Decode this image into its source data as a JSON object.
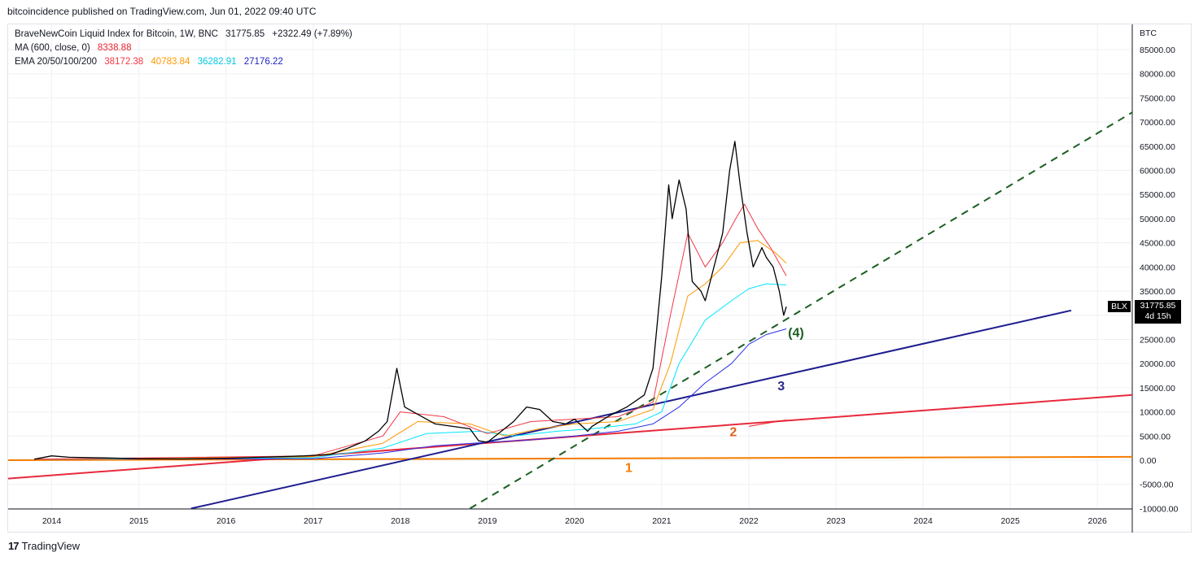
{
  "header": {
    "published": "bitcoincidence published on TradingView.com, Jun 01, 2022 09:40 UTC"
  },
  "legend": {
    "line1": {
      "label": "BraveNewCoin Liquid Index for Bitcoin, 1W, BNC",
      "close": "31775.85",
      "change": "+2322.49 (+7.89%)"
    },
    "line2": {
      "label": "MA (600, close, 0)",
      "value": "8338.88"
    },
    "line3": {
      "label": "EMA 20/50/100/200",
      "v20": "38172.38",
      "v50": "40783.84",
      "v100": "36282.91",
      "v200": "27176.22"
    }
  },
  "price_tag": {
    "symbol": "BLX",
    "price": "31775.85",
    "countdown": "4d 15h"
  },
  "footer": {
    "brand": "TradingView",
    "logo": "17"
  },
  "colors": {
    "price": "#000000",
    "ema20": "#f23645",
    "ema50": "#ff9800",
    "ema100": "#00e5ff",
    "ema200": "#2a2ee8",
    "ma600": "#e8232d",
    "line1": "#f57c00",
    "line2": "#e8293d",
    "line3": "#1f1d8e",
    "line4": "#1b5e20",
    "label1": "#f57c00",
    "label2": "#e0621c",
    "label3": "#2b2a8a",
    "label4": "#1b5e20",
    "grid": "#eef0f3"
  },
  "chart_data": {
    "type": "line",
    "title": "BraveNewCoin Liquid Index for Bitcoin, 1W, BNC",
    "y_unit": "BTC",
    "ylim": [
      -10000,
      90000
    ],
    "xlim": [
      2013.5,
      2026.4
    ],
    "x_ticks": [
      "2014",
      "2015",
      "2016",
      "2017",
      "2018",
      "2019",
      "2020",
      "2021",
      "2022",
      "2023",
      "2024",
      "2025",
      "2026"
    ],
    "y_ticks": [
      "-10000.00",
      "-5000.00",
      "0.00",
      "5000.00",
      "10000.00",
      "15000.00",
      "20000.00",
      "25000.00",
      "30000.00",
      "35000.00",
      "40000.00",
      "45000.00",
      "50000.00",
      "55000.00",
      "60000.00",
      "65000.00",
      "70000.00",
      "75000.00",
      "80000.00",
      "85000.00"
    ],
    "grid": true,
    "series": [
      {
        "name": "BraveNewCoin Liquid Index for Bitcoin",
        "x": [
          2013.8,
          2014.0,
          2014.2,
          2014.5,
          2014.8,
          2015.0,
          2015.5,
          2016.0,
          2016.5,
          2016.9,
          2017.2,
          2017.4,
          2017.6,
          2017.75,
          2017.85,
          2017.96,
          2018.05,
          2018.2,
          2018.4,
          2018.6,
          2018.8,
          2018.9,
          2019.0,
          2019.3,
          2019.45,
          2019.6,
          2019.75,
          2019.9,
          2020.0,
          2020.15,
          2020.2,
          2020.4,
          2020.6,
          2020.8,
          2020.9,
          2021.0,
          2021.08,
          2021.12,
          2021.2,
          2021.28,
          2021.35,
          2021.45,
          2021.5,
          2021.6,
          2021.7,
          2021.78,
          2021.84,
          2021.9,
          2021.98,
          2022.05,
          2022.15,
          2022.2,
          2022.28,
          2022.35,
          2022.4,
          2022.43
        ],
        "y": [
          200,
          900,
          600,
          500,
          400,
          300,
          250,
          400,
          650,
          900,
          1200,
          2500,
          4000,
          6000,
          8000,
          19000,
          11000,
          9500,
          7500,
          7000,
          6500,
          4000,
          3700,
          8000,
          11000,
          10500,
          8000,
          7500,
          8500,
          6000,
          7000,
          9200,
          11000,
          13500,
          19000,
          38000,
          57000,
          50000,
          58000,
          52000,
          37000,
          35000,
          33000,
          40000,
          47000,
          60000,
          66000,
          57000,
          47000,
          40000,
          44000,
          42000,
          40000,
          35000,
          30000,
          31776
        ]
      },
      {
        "name": "EMA 20",
        "x": [
          2013.8,
          2017.0,
          2017.8,
          2018.0,
          2018.5,
          2019.0,
          2019.5,
          2020.0,
          2020.5,
          2020.9,
          2021.1,
          2021.3,
          2021.5,
          2021.7,
          2021.85,
          2021.95,
          2022.1,
          2022.25,
          2022.43
        ],
        "y": [
          200,
          900,
          5000,
          10000,
          9000,
          5500,
          8000,
          8500,
          9000,
          12000,
          30000,
          47000,
          40000,
          45000,
          50000,
          53000,
          48000,
          44000,
          38172
        ]
      },
      {
        "name": "EMA 50",
        "x": [
          2013.8,
          2017.0,
          2017.8,
          2018.2,
          2018.8,
          2019.2,
          2019.6,
          2020.0,
          2020.5,
          2020.9,
          2021.1,
          2021.3,
          2021.5,
          2021.7,
          2021.9,
          2022.1,
          2022.3,
          2022.43
        ],
        "y": [
          200,
          700,
          3500,
          8000,
          7500,
          5000,
          6500,
          7500,
          8000,
          10500,
          20000,
          34000,
          36500,
          40000,
          45000,
          45500,
          43000,
          40784
        ]
      },
      {
        "name": "EMA 100",
        "x": [
          2013.8,
          2017.0,
          2017.8,
          2018.3,
          2018.9,
          2019.3,
          2019.8,
          2020.2,
          2020.7,
          2021.0,
          2021.2,
          2021.5,
          2021.8,
          2022.0,
          2022.2,
          2022.43
        ],
        "y": [
          200,
          500,
          2500,
          5500,
          6000,
          5000,
          6000,
          6500,
          7500,
          10000,
          20000,
          29000,
          33000,
          35500,
          36500,
          36283
        ]
      },
      {
        "name": "EMA 200",
        "x": [
          2013.8,
          2017.0,
          2017.8,
          2018.4,
          2019.0,
          2019.5,
          2020.0,
          2020.5,
          2020.9,
          2021.2,
          2021.5,
          2021.8,
          2022.0,
          2022.2,
          2022.43
        ],
        "y": [
          200,
          300,
          1500,
          3000,
          3700,
          4200,
          5000,
          6000,
          7500,
          11000,
          16000,
          20000,
          24000,
          26000,
          27176
        ]
      },
      {
        "name": "MA 600",
        "x": [
          2022.0,
          2022.43
        ],
        "y": [
          7000,
          8339
        ]
      }
    ],
    "trendlines": [
      {
        "label": "1",
        "x": [
          2013.5,
          2026.4
        ],
        "y": [
          0,
          700
        ]
      },
      {
        "label": "2",
        "x": [
          2013.5,
          2026.4
        ],
        "y": [
          -3800,
          13500
        ]
      },
      {
        "label": "3",
        "x": [
          2015.6,
          2025.7
        ],
        "y": [
          -10000,
          31000
        ]
      },
      {
        "label": "(4)",
        "x": [
          2018.8,
          2026.4
        ],
        "y": [
          -10000,
          72000
        ]
      }
    ],
    "annotations": [
      "1",
      "2",
      "3",
      "(4)"
    ]
  }
}
